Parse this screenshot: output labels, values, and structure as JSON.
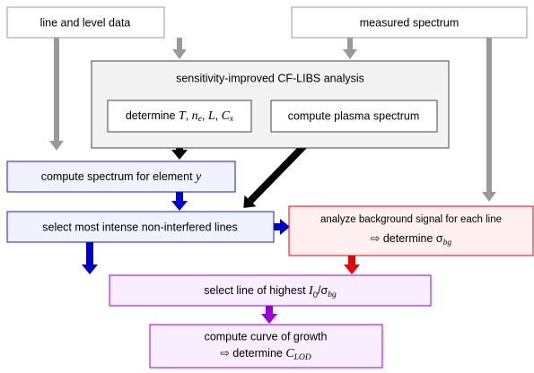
{
  "nodes": [
    {
      "label": [
        "line and level data"
      ]
    },
    {
      "label": [
        "measured spectrum"
      ]
    },
    {
      "label": [
        "sensitivity-improved CF-LIBS analysis"
      ]
    },
    {
      "label": [
        "determine ",
        "T",
        ", ",
        "n",
        "e",
        ", ",
        "L",
        ", ",
        "C",
        "x"
      ]
    },
    {
      "label": [
        "compute plasma spectrum"
      ]
    },
    {
      "label": [
        "compute spectrum for element ",
        "y"
      ]
    },
    {
      "label": [
        "select most intense non-interfered lines"
      ]
    },
    {
      "label": [
        "analyze background signal for each line",
        "⇨ determine ",
        "σ",
        "bg"
      ]
    },
    {
      "label": [
        "select line of highest ",
        "I",
        "0",
        "/σ",
        "bg"
      ]
    },
    {
      "label": [
        "compute curve of growth",
        "⇨ determine ",
        "C",
        "LOD"
      ]
    }
  ]
}
